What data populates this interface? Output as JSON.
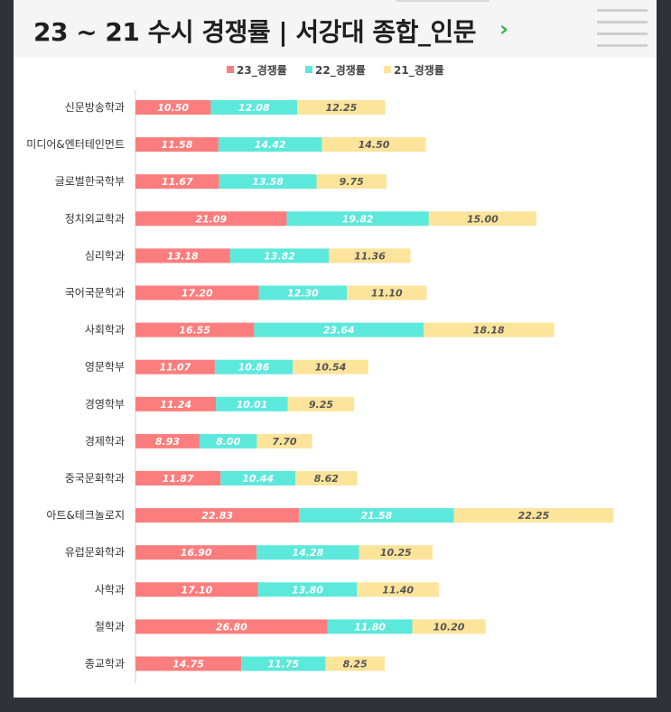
{
  "header": {
    "title": "23 ~ 21 수시 경쟁률 | 서강대 종합_인문",
    "chevron": "›"
  },
  "colors": {
    "series_23": "#fc7d7d",
    "series_22": "#5de8dc",
    "series_21": "#fde49b"
  },
  "chart_data": {
    "type": "bar",
    "orientation": "horizontal",
    "stacked": true,
    "legend_position": "top",
    "categories": [
      "신문방송학과",
      "미디어&엔터테인먼트",
      "글로벌한국학부",
      "정치외교학과",
      "심리학과",
      "국어국문학과",
      "사회학과",
      "영문학부",
      "경영학부",
      "경제학과",
      "중국문화학과",
      "아트&테크놀로지",
      "유럽문화학과",
      "사학과",
      "철학과",
      "종교학과"
    ],
    "series": [
      {
        "name": "23_경쟁률",
        "values": [
          10.5,
          11.58,
          11.67,
          21.09,
          13.18,
          17.2,
          16.55,
          11.07,
          11.24,
          8.93,
          11.87,
          22.83,
          16.9,
          17.1,
          26.8,
          14.75
        ]
      },
      {
        "name": "22_경쟁률",
        "values": [
          12.08,
          14.42,
          13.58,
          19.82,
          13.82,
          12.3,
          23.64,
          10.86,
          10.01,
          8.0,
          10.44,
          21.58,
          14.28,
          13.8,
          11.8,
          11.75
        ]
      },
      {
        "name": "21_경쟁률",
        "values": [
          12.25,
          14.5,
          9.75,
          15.0,
          11.36,
          11.1,
          18.18,
          10.54,
          9.25,
          7.7,
          8.62,
          22.25,
          10.25,
          11.4,
          10.2,
          8.25
        ]
      }
    ],
    "xlim": [
      0,
      67
    ],
    "labels": [
      [
        "10.50",
        "12.08",
        "12.25"
      ],
      [
        "11.58",
        "14.42",
        "14.50"
      ],
      [
        "11.67",
        "13.58",
        "9.75"
      ],
      [
        "21.09",
        "19.82",
        "15.00"
      ],
      [
        "13.18",
        "13.82",
        "11.36"
      ],
      [
        "17.20",
        "12.30",
        "11.10"
      ],
      [
        "16.55",
        "23.64",
        "18.18"
      ],
      [
        "11.07",
        "10.86",
        "10.54"
      ],
      [
        "11.24",
        "10.01",
        "9.25"
      ],
      [
        "8.93",
        "8.00",
        "7.70"
      ],
      [
        "11.87",
        "10.44",
        "8.62"
      ],
      [
        "22.83",
        "21.58",
        "22.25"
      ],
      [
        "16.90",
        "14.28",
        "10.25"
      ],
      [
        "17.10",
        "13.80",
        "11.40"
      ],
      [
        "26.80",
        "11.80",
        "10.20"
      ],
      [
        "14.75",
        "11.75",
        "8.25"
      ]
    ]
  }
}
